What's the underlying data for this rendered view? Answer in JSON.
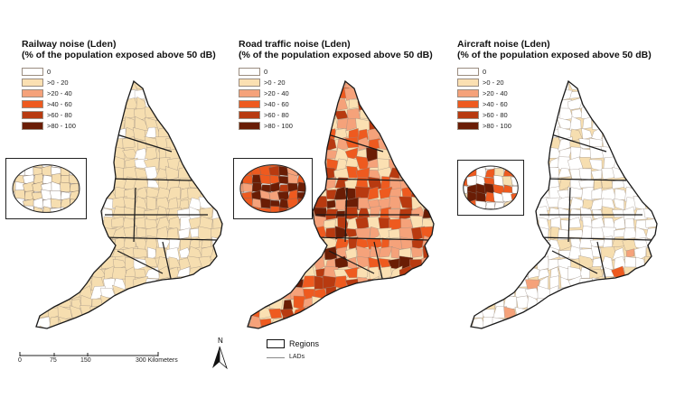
{
  "panels": [
    {
      "id": "railway",
      "title_line1": "Railway noise (Lden)",
      "title_line2": "(% of the population exposed above 50 dB)",
      "fills": {
        "base": "#ffffff",
        "cells": "#f6deb0"
      }
    },
    {
      "id": "road",
      "title_line1": "Road traffic noise (Lden)",
      "title_line2": "(% of the population exposed above 50 dB)",
      "fills": {
        "base": "#ef9d6a",
        "cells": "#c4501f"
      }
    },
    {
      "id": "aircraft",
      "title_line1": "Aircraft noise (Lden)",
      "title_line2": "(% of the population exposed above 50 dB)",
      "fills": {
        "base": "#ffffff",
        "cells": "#f6deb0"
      }
    }
  ],
  "legend": [
    {
      "label": "0",
      "color": "#ffffff"
    },
    {
      "label": ">0 - 20",
      "color": "#fbe0b2"
    },
    {
      "label": ">20 - 40",
      "color": "#f5a27a"
    },
    {
      "label": ">40 - 60",
      "color": "#ee5a1f"
    },
    {
      "label": ">60 - 80",
      "color": "#b83a10"
    },
    {
      "label": ">80 - 100",
      "color": "#6a1d05"
    }
  ],
  "scalebar": {
    "ticks": [
      "0",
      "75",
      "150",
      "300 Kilometers"
    ]
  },
  "north_arrow": {
    "label": "N"
  },
  "boundary_legend": {
    "regions": "Regions",
    "lads": "LADs"
  }
}
